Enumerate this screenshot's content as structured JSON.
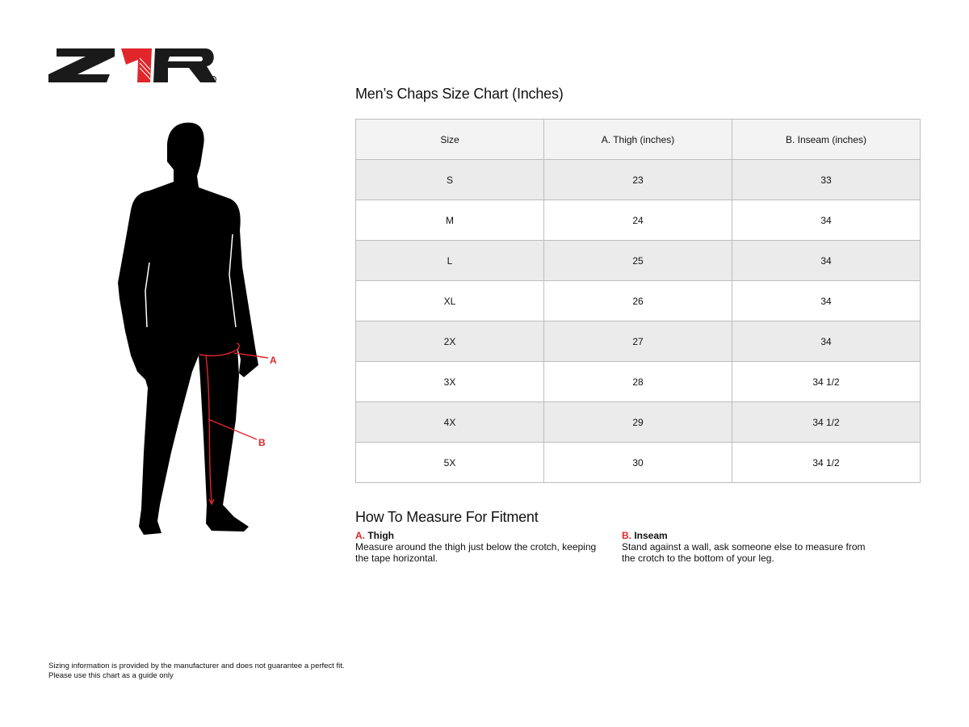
{
  "brand": {
    "logo_text": "Z1R",
    "registered_mark": "®",
    "accent_color": "#e0262b"
  },
  "figure": {
    "label_a": "A",
    "label_b": "B"
  },
  "title": "Men’s Chaps Size Chart (Inches)",
  "table": {
    "headers": [
      "Size",
      "A. Thigh (inches)",
      "B. Inseam (inches)"
    ],
    "rows": [
      [
        "S",
        "23",
        "33"
      ],
      [
        "M",
        "24",
        "34"
      ],
      [
        "L",
        "25",
        "34"
      ],
      [
        "XL",
        "26",
        "34"
      ],
      [
        "2X",
        "27",
        "34"
      ],
      [
        "3X",
        "28",
        "34 1/2"
      ],
      [
        "4X",
        "29",
        "34 1/2"
      ],
      [
        "5X",
        "30",
        "34 1/2"
      ]
    ]
  },
  "howto": {
    "title": "How To Measure For Fitment",
    "items": [
      {
        "letter": "A.",
        "name": "Thigh",
        "text": "Measure around the thigh just below the crotch, keeping the tape horizontal."
      },
      {
        "letter": "B.",
        "name": "Inseam",
        "text": "Stand against a wall, ask someone else to measure from the crotch to the bottom of your leg."
      }
    ]
  },
  "footer": {
    "line1": "Sizing information is provided by the manufacturer and does not guarantee a perfect fit.",
    "line2": "Please use this chart as a guide only"
  }
}
